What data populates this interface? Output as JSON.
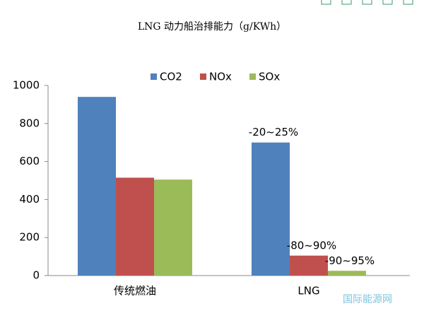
{
  "chart_data": {
    "type": "bar",
    "title": "LNG 动力船治排能力（g/KWh）",
    "categories": [
      "传统燃油",
      "LNG"
    ],
    "series": [
      {
        "name": "CO2",
        "color": "#4f81bd",
        "values": [
          940,
          700
        ]
      },
      {
        "name": "NOx",
        "color": "#c0504d",
        "values": [
          515,
          105
        ]
      },
      {
        "name": "SOx",
        "color": "#9bbb59",
        "values": [
          505,
          25
        ]
      }
    ],
    "annotations": [
      "-20~25%",
      "-80~90%",
      "-90~95%"
    ],
    "ylim": [
      0,
      1000
    ],
    "yticks": [
      0,
      200,
      400,
      600,
      800,
      1000
    ],
    "legend": "top",
    "watermark": "国际能源网"
  }
}
